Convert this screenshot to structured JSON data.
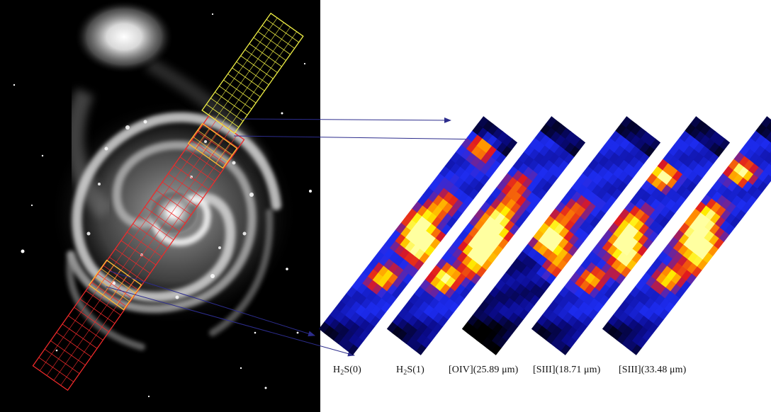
{
  "figure": {
    "image_description_icon": "galaxy-m51-icon",
    "slit_colors": {
      "yellow": "#eeee44",
      "red": "#ee2a2a",
      "arrow": "#2c2c8c"
    },
    "colormap": [
      "#000000",
      "#0a0a8a",
      "#1d2cf0",
      "#e0181f",
      "#ff8a00",
      "#ffee00",
      "#ffffa0"
    ]
  },
  "maps": [
    {
      "name": "map-h2s0",
      "pre": "H",
      "sub": "2",
      "post": "S(0)"
    },
    {
      "name": "map-h2s1",
      "pre": "H",
      "sub": "2",
      "post": "S(1)"
    },
    {
      "name": "map-oiv",
      "pre": "[OIV](25.89 μm)",
      "sub": "",
      "post": ""
    },
    {
      "name": "map-siii-18",
      "pre": "[SIII](18.71 μm)",
      "sub": "",
      "post": ""
    },
    {
      "name": "map-siii-33",
      "pre": "[SIII](33.48 μm)",
      "sub": "",
      "post": ""
    }
  ]
}
